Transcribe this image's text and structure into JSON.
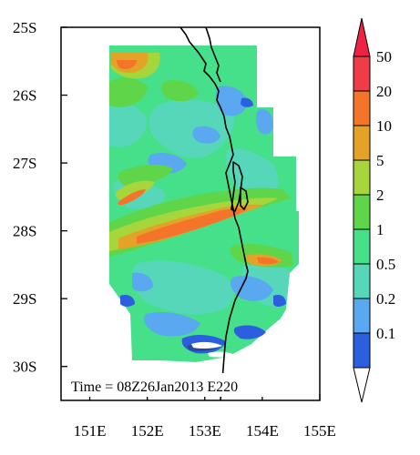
{
  "map": {
    "y_ticks": [
      "25S",
      "26S",
      "27S",
      "28S",
      "29S",
      "30S"
    ],
    "x_ticks": [
      "151E",
      "152E",
      "153E",
      "154E",
      "155E"
    ],
    "lat_range": [
      -30.5,
      -25
    ],
    "lon_range": [
      150.5,
      155
    ]
  },
  "annotation": {
    "time_text": "Time = 08Z26Jan2013 E220"
  },
  "colorbar": {
    "labels": [
      "50",
      "20",
      "10",
      "5",
      "2",
      "1",
      "0.5",
      "0.2",
      "0.1"
    ],
    "colors": [
      "#ee3c48",
      "#f4742a",
      "#e4a227",
      "#a6d63b",
      "#5fd64a",
      "#46e08a",
      "#56d7b9",
      "#5aa8ef",
      "#2c5fe0"
    ],
    "top_arrow_color": "#ee2344",
    "bottom_arrow_color": "#ffffff"
  },
  "field_colors": {
    "c01": "#29479d",
    "c02": "#2c5fe0",
    "c1": "#5aa8ef",
    "c2": "#56d7b9",
    "c3": "#46e08a",
    "c4": "#5fd64a",
    "c5": "#a6d63b",
    "c6": "#e4a227",
    "c7": "#f4742a",
    "coast": "#000000"
  }
}
